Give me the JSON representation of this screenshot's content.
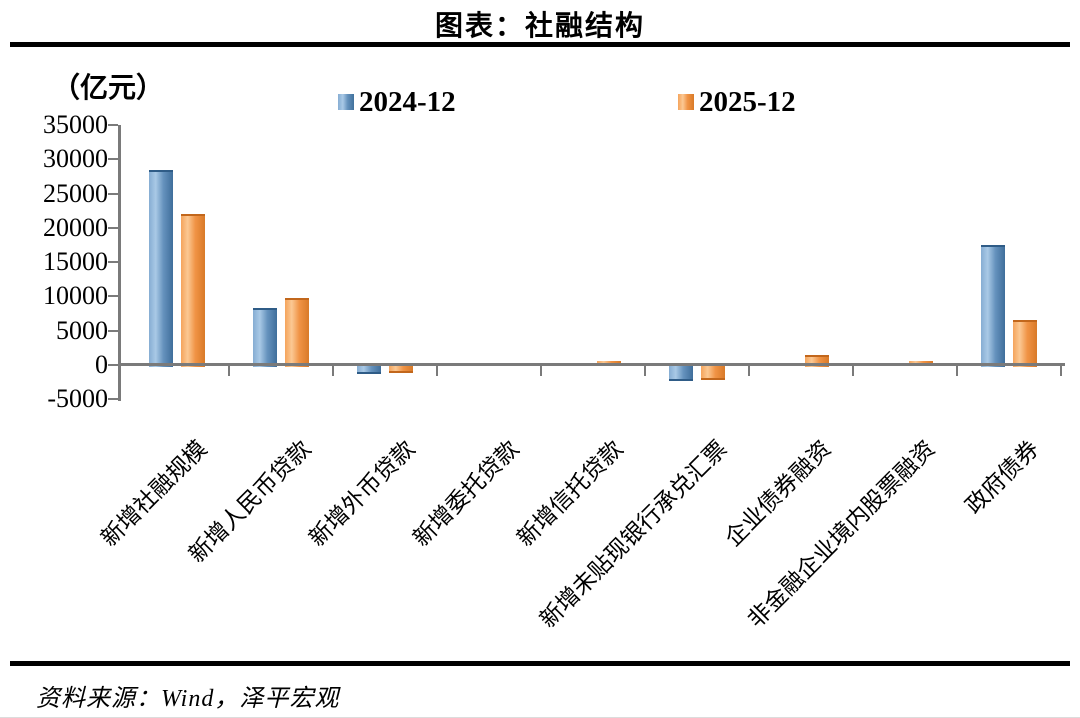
{
  "page": {
    "title": "图表：社融结构",
    "footer": "资料来源：Wind，泽平宏观"
  },
  "chart_data": {
    "type": "bar",
    "title": "图表：社融结构",
    "unit_label": "（亿元）",
    "categories": [
      "新增社融规模",
      "新增人民币贷款",
      "新增外币贷款",
      "新增委托贷款",
      "新增信托贷款",
      "新增未贴现银行承兑汇票",
      "企业债券融资",
      "非金融企业境内股票融资",
      "政府债券"
    ],
    "series": [
      {
        "name": "2024-12",
        "color": "#5b8ab8",
        "values": [
          28500,
          8300,
          -900,
          0,
          0,
          -1900,
          0,
          300,
          17500
        ]
      },
      {
        "name": "2025-12",
        "color": "#f39c4f",
        "values": [
          22000,
          9700,
          -800,
          300,
          600,
          -1800,
          1400,
          500,
          6500
        ]
      }
    ],
    "ylim": [
      -5000,
      35000
    ],
    "yticks": [
      35000,
      30000,
      25000,
      20000,
      15000,
      10000,
      5000,
      0,
      -5000
    ],
    "grid": false,
    "legend_position": "top",
    "axis_color": "#7a7a7a",
    "source_note": "资料来源：Wind，泽平宏观"
  }
}
